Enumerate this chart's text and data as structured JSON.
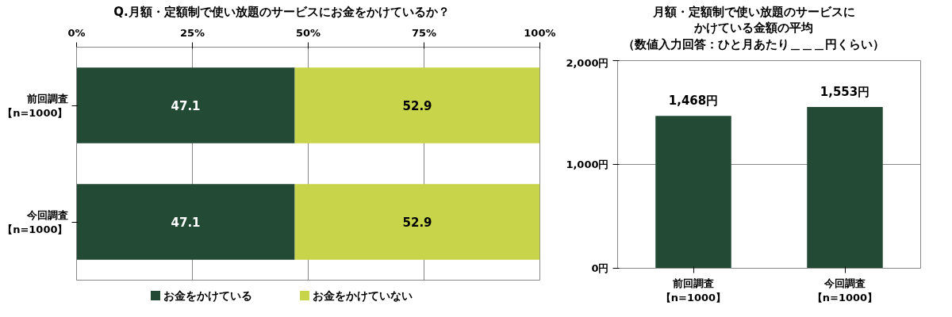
{
  "chart_data": [
    {
      "type": "bar",
      "orientation": "horizontal",
      "stacked": true,
      "title": "Q.月額・定額制で使い放題のサービスにお金をかけているか？",
      "categories": [
        "前回調査【n=1000】",
        "今回調査【n=1000】"
      ],
      "series": [
        {
          "name": "お金をかけている",
          "color": "#234a35",
          "values": [
            47.1,
            47.1
          ]
        },
        {
          "name": "お金をかけていない",
          "color": "#c8d44a",
          "values": [
            52.9,
            52.9
          ]
        }
      ],
      "xlim": [
        0,
        100
      ],
      "xticks": [
        {
          "value": 0,
          "label": "0%"
        },
        {
          "value": 25,
          "label": "25%"
        },
        {
          "value": 50,
          "label": "50%"
        },
        {
          "value": 75,
          "label": "75%"
        },
        {
          "value": 100,
          "label": "100%"
        }
      ],
      "grid": "x",
      "legend": "bottom",
      "data_labels": true
    },
    {
      "type": "bar",
      "title": "月額・定額制で使い放題のサービスにかけている金額の平均",
      "subtitle": "（数値入力回答：ひと月あたり＿＿＿円くらい）",
      "categories": [
        "前回調査【n=1000】",
        "今回調査【n=1000】"
      ],
      "series": [
        {
          "color": "#234a35",
          "values": [
            1468,
            1553
          ],
          "value_labels": [
            "1,468円",
            "1,553円"
          ]
        }
      ],
      "ylim": [
        0,
        2000
      ],
      "yticks": [
        {
          "value": 0,
          "label": "0円"
        },
        {
          "value": 1000,
          "label": "1,000円"
        },
        {
          "value": 2000,
          "label": "2,000円"
        }
      ],
      "grid": "y"
    }
  ]
}
